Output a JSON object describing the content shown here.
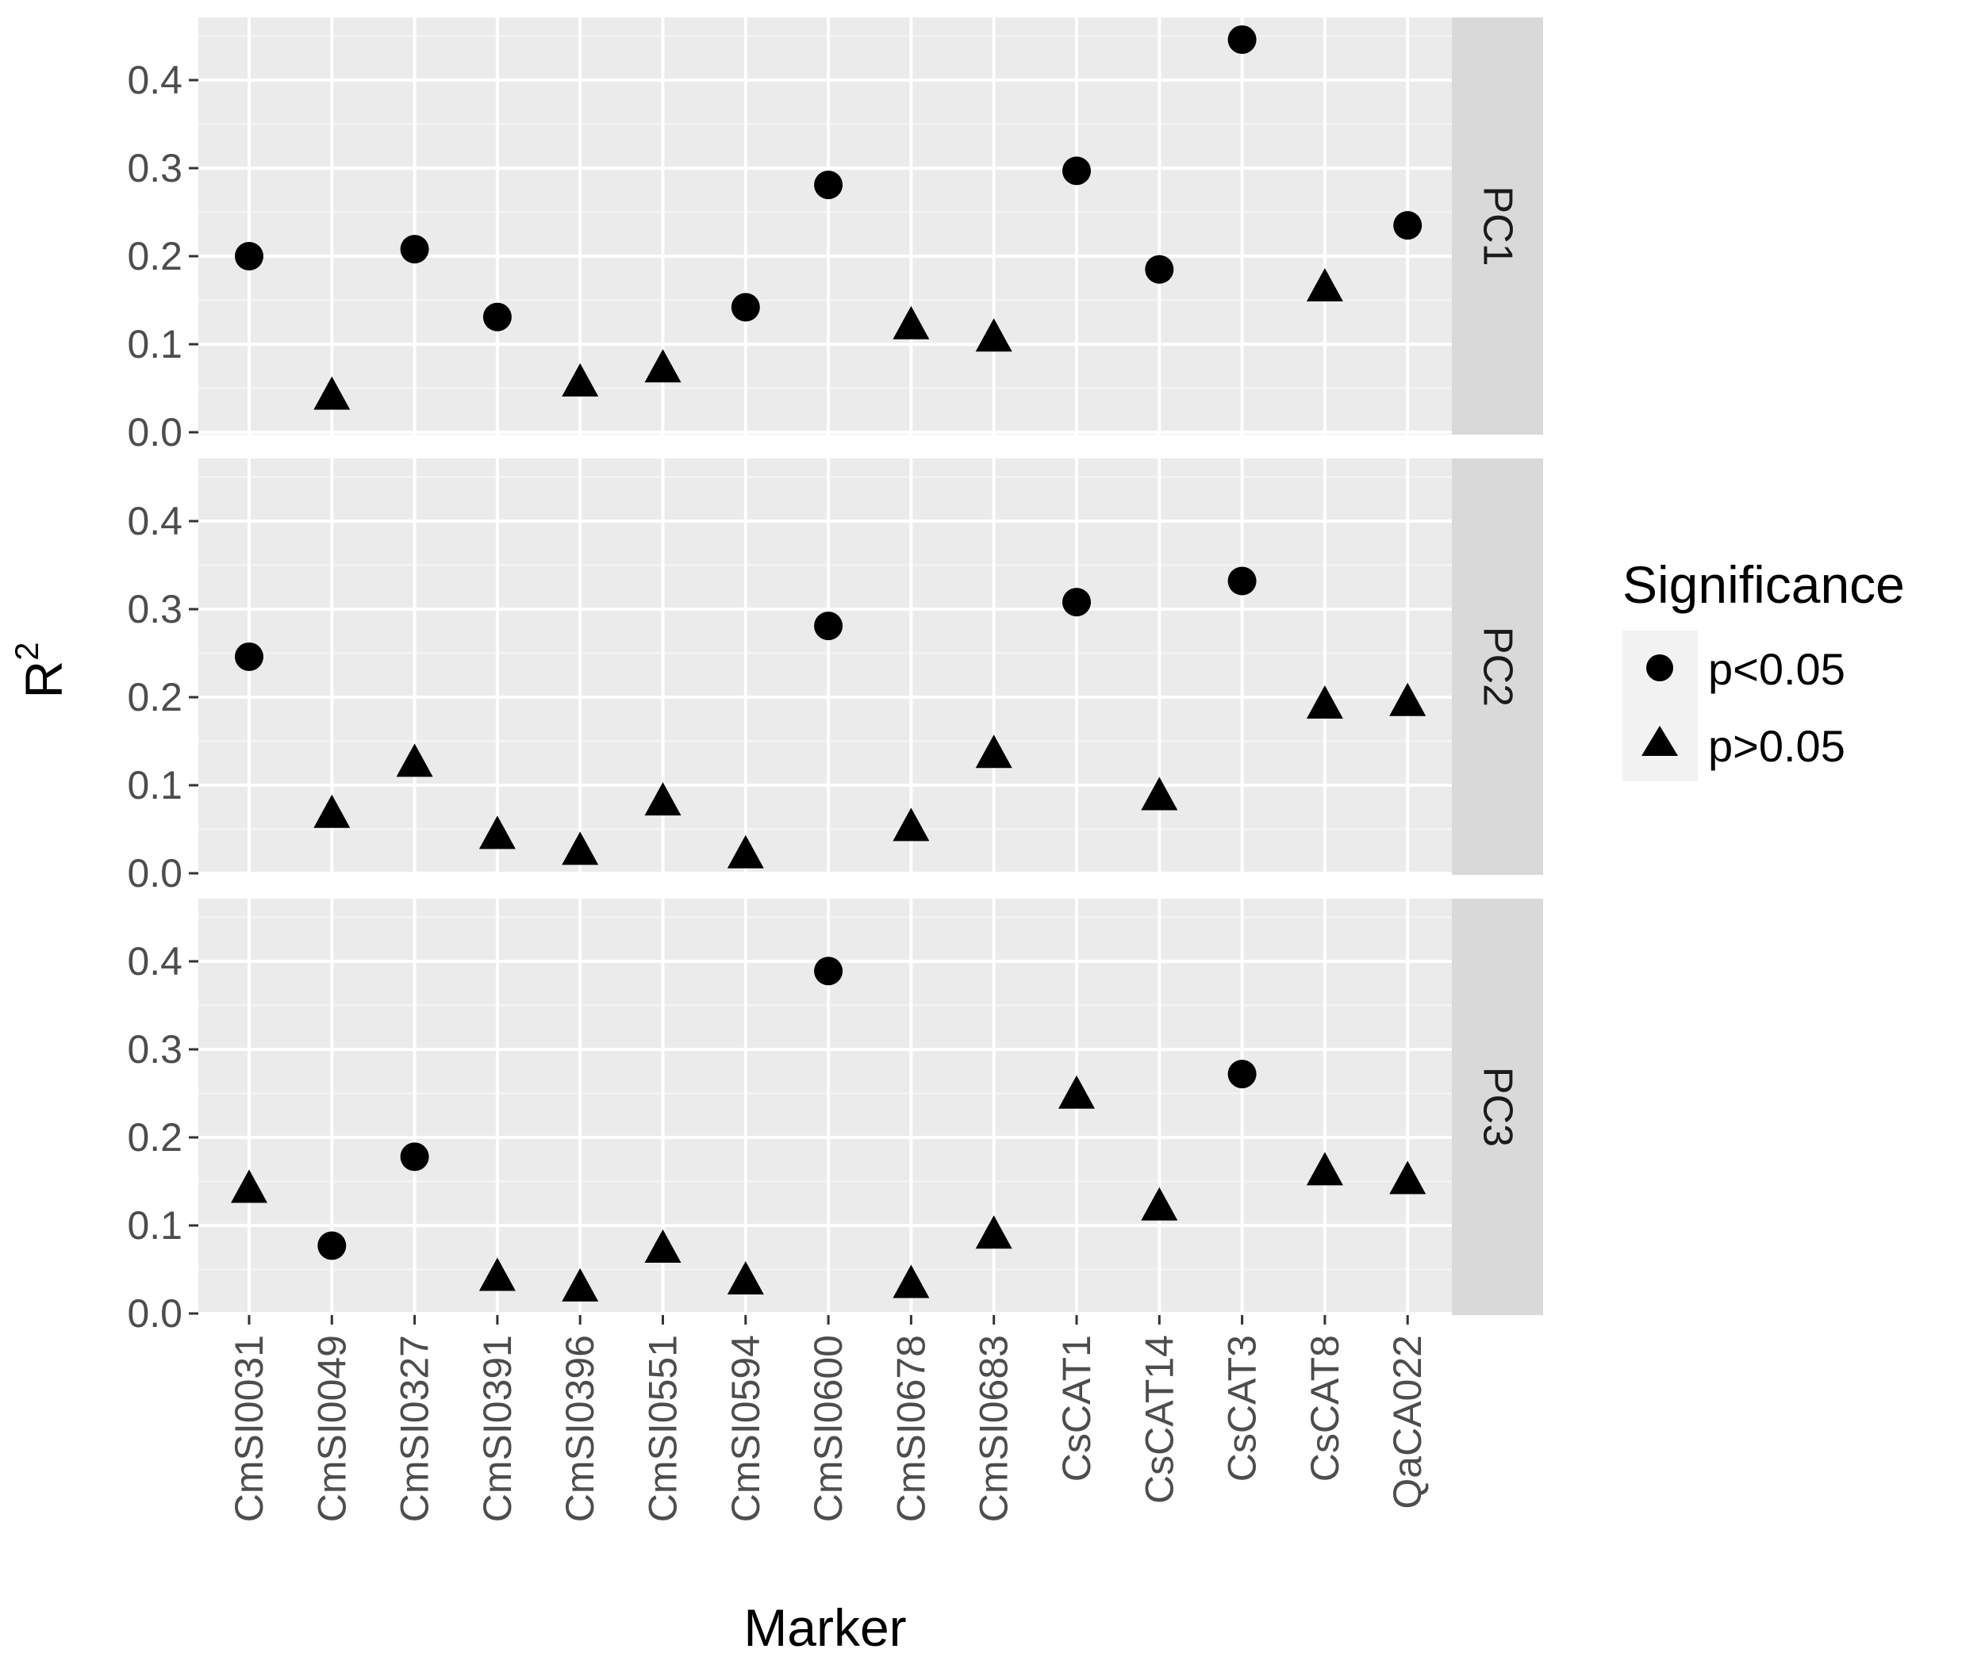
{
  "chart_data": {
    "type": "scatter",
    "xlabel": "Marker",
    "ylabel": "R",
    "ylabel_superscript": "2",
    "categories": [
      "CmSI0031",
      "CmSI0049",
      "CmSI0327",
      "CmSI0391",
      "CmSI0396",
      "CmSI0551",
      "CmSI0594",
      "CmSI0600",
      "CmSI0678",
      "CmSI0683",
      "CsCAT1",
      "CsCAT14",
      "CsCAT3",
      "CsCAT8",
      "QaCA022"
    ],
    "ylim": [
      0,
      0.45
    ],
    "yticks": [
      0.0,
      0.1,
      0.2,
      0.3,
      0.4
    ],
    "ytick_labels": [
      "0.0",
      "0.1",
      "0.2",
      "0.3",
      "0.4"
    ],
    "grid": true,
    "legend": {
      "title": "Significance",
      "placement": "right",
      "entries": [
        {
          "label": "p<0.05",
          "shape": "circle"
        },
        {
          "label": "p>0.05",
          "shape": "triangle"
        }
      ]
    },
    "facets": [
      {
        "label": "PC1",
        "values": [
          0.2,
          0.04,
          0.208,
          0.131,
          0.055,
          0.071,
          0.142,
          0.281,
          0.12,
          0.106,
          0.297,
          0.185,
          0.446,
          0.163,
          0.235
        ],
        "significance": [
          "p<0.05",
          "p>0.05",
          "p<0.05",
          "p<0.05",
          "p>0.05",
          "p>0.05",
          "p<0.05",
          "p<0.05",
          "p>0.05",
          "p>0.05",
          "p<0.05",
          "p<0.05",
          "p<0.05",
          "p>0.05",
          "p<0.05"
        ]
      },
      {
        "label": "PC2",
        "values": [
          0.246,
          0.066,
          0.124,
          0.042,
          0.024,
          0.08,
          0.02,
          0.281,
          0.051,
          0.134,
          0.308,
          0.086,
          0.332,
          0.19,
          0.193
        ],
        "significance": [
          "p<0.05",
          "p>0.05",
          "p>0.05",
          "p>0.05",
          "p>0.05",
          "p>0.05",
          "p>0.05",
          "p<0.05",
          "p>0.05",
          "p>0.05",
          "p<0.05",
          "p>0.05",
          "p<0.05",
          "p>0.05",
          "p>0.05"
        ]
      },
      {
        "label": "PC3",
        "values": [
          0.14,
          0.077,
          0.178,
          0.04,
          0.028,
          0.072,
          0.036,
          0.389,
          0.032,
          0.088,
          0.247,
          0.12,
          0.272,
          0.16,
          0.15
        ],
        "significance": [
          "p>0.05",
          "p<0.05",
          "p<0.05",
          "p>0.05",
          "p>0.05",
          "p>0.05",
          "p>0.05",
          "p<0.05",
          "p>0.05",
          "p>0.05",
          "p>0.05",
          "p>0.05",
          "p<0.05",
          "p>0.05",
          "p>0.05"
        ]
      }
    ]
  }
}
